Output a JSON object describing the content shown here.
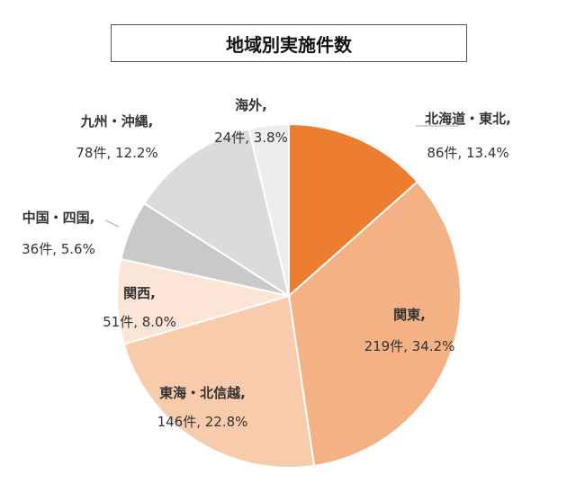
{
  "chart_data": {
    "type": "pie",
    "title": "地域別実施件数",
    "slices": [
      {
        "name": "北海道・東北,",
        "value": 86,
        "value_label": "86件, 13.4%",
        "color": "#ED7D31"
      },
      {
        "name": "関東,",
        "value": 219,
        "value_label": "219件, 34.2%",
        "color": "#F4B183"
      },
      {
        "name": "東海・北信越,",
        "value": 146,
        "value_label": "146件, 22.8%",
        "color": "#F8CBAD"
      },
      {
        "name": "関西,",
        "value": 51,
        "value_label": "51件, 8.0%",
        "color": "#FBE5D6"
      },
      {
        "name": "中国・四国,",
        "value": 36,
        "value_label": "36件, 5.6%",
        "color": "#C9C9C9"
      },
      {
        "name": "九州・沖縄,",
        "value": 78,
        "value_label": "78件, 12.2%",
        "color": "#DBDBDB"
      },
      {
        "name": "海外,",
        "value": 24,
        "value_label": "24件, 3.8%",
        "color": "#EDEDED"
      }
    ]
  }
}
